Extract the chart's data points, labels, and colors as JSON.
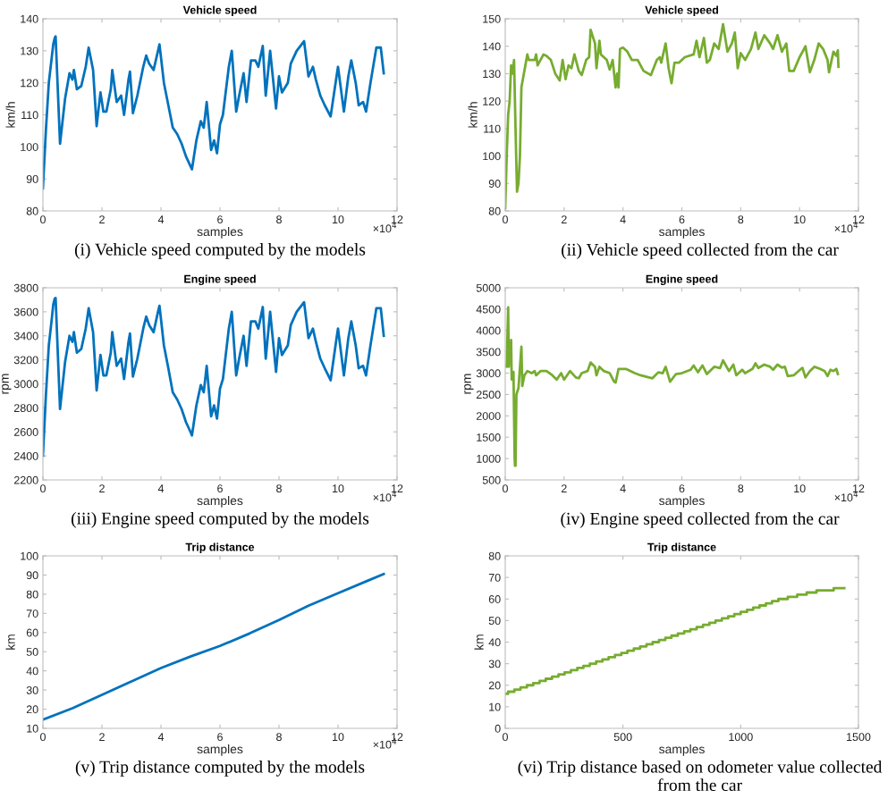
{
  "chart_data": [
    {
      "type": "line",
      "title": "Vehicle speed",
      "xlabel": "samples",
      "ylabel": "km/h",
      "x": [
        0,
        0.1,
        0.2,
        0.3,
        0.35,
        0.4,
        0.43,
        0.58,
        0.75,
        0.9,
        1.0,
        1.05,
        1.15,
        1.3,
        1.45,
        1.55,
        1.7,
        1.82,
        1.95,
        2.05,
        2.15,
        2.3,
        2.35,
        2.5,
        2.65,
        2.75,
        2.9,
        2.95,
        3.05,
        3.2,
        3.4,
        3.5,
        3.6,
        3.75,
        3.9,
        3.95,
        4.1,
        4.25,
        4.4,
        4.55,
        4.7,
        4.85,
        5.0,
        5.05,
        5.2,
        5.35,
        5.45,
        5.55,
        5.7,
        5.8,
        5.9,
        6.0,
        6.1,
        6.3,
        6.4,
        6.55,
        6.65,
        6.8,
        6.9,
        7.05,
        7.2,
        7.3,
        7.45,
        7.55,
        7.7,
        7.9,
        8.0,
        8.1,
        8.3,
        8.4,
        8.6,
        8.85,
        9.0,
        9.15,
        9.25,
        9.4,
        9.55,
        9.75,
        9.95,
        10.0,
        10.2,
        10.35,
        10.45,
        10.6,
        10.7,
        10.85,
        10.95,
        11.1,
        11.3,
        11.45,
        11.55
      ],
      "series": [
        {
          "color": "#0072bd",
          "values": [
            87,
            105,
            120,
            128,
            132,
            134,
            134.5,
            101,
            115,
            123,
            121,
            124,
            118,
            119,
            125,
            131,
            124,
            106.5,
            117,
            111,
            111,
            118,
            124,
            114,
            116,
            110,
            121,
            123.5,
            110.5,
            116,
            125,
            128.5,
            126,
            124,
            130,
            132,
            120,
            113,
            106,
            104,
            101,
            97,
            94,
            93,
            102,
            108,
            106,
            114,
            99,
            102,
            98,
            107,
            110,
            125,
            130,
            111,
            116,
            123,
            114,
            127,
            127,
            125,
            131.5,
            116,
            130,
            112,
            122,
            117,
            120,
            126,
            130,
            133,
            122,
            125,
            121,
            116,
            113,
            109.5,
            122,
            125,
            111,
            122,
            127,
            120,
            113,
            114,
            111,
            120,
            131,
            131,
            123
          ]
        }
      ],
      "xlim": [
        0,
        12
      ],
      "xticks": [
        0,
        2,
        4,
        6,
        8,
        10,
        12
      ],
      "ylim": [
        80,
        140
      ],
      "yticks": [
        80,
        90,
        100,
        110,
        120,
        130,
        140
      ],
      "annotations": [
        "(i) Vehicle speed computed by the models",
        "×10$^{4}$"
      ]
    },
    {
      "type": "line",
      "title": "Vehicle speed",
      "xlabel": "samples",
      "ylabel": "km/h",
      "x": [
        0,
        0.05,
        0.1,
        0.15,
        0.2,
        0.25,
        0.3,
        0.35,
        0.4,
        0.45,
        0.5,
        0.55,
        0.6,
        0.7,
        0.75,
        0.8,
        1.0,
        1.05,
        1.1,
        1.3,
        1.4,
        1.55,
        1.7,
        1.85,
        1.95,
        2.05,
        2.15,
        2.25,
        2.35,
        2.5,
        2.6,
        2.75,
        2.85,
        2.9,
        3.05,
        3.1,
        3.2,
        3.25,
        3.45,
        3.55,
        3.65,
        3.75,
        3.8,
        3.85,
        3.9,
        4.0,
        4.15,
        4.3,
        4.5,
        4.7,
        4.95,
        5.15,
        5.25,
        5.3,
        5.45,
        5.55,
        5.65,
        5.75,
        5.9,
        6.1,
        6.4,
        6.5,
        6.6,
        6.75,
        6.85,
        6.95,
        7.1,
        7.25,
        7.4,
        7.55,
        7.7,
        7.8,
        7.9,
        8.0,
        8.15,
        8.35,
        8.5,
        8.6,
        8.8,
        9.0,
        9.1,
        9.25,
        9.4,
        9.55,
        9.65,
        9.8,
        10.0,
        10.15,
        10.2,
        10.35,
        10.5,
        10.65,
        10.8,
        10.95,
        11.0,
        11.15,
        11.25,
        11.3,
        11.32
      ],
      "series": [
        {
          "color": "#77ac30",
          "values": [
            81,
            100,
            115,
            120,
            133,
            130,
            135,
            110,
            87,
            90,
            100,
            125,
            128,
            134,
            137,
            135,
            135,
            137,
            133,
            137,
            136.5,
            135,
            130,
            127.5,
            135,
            128,
            133,
            132,
            137,
            131,
            129.5,
            135,
            136,
            146,
            141,
            132,
            142,
            137,
            135,
            131.5,
            135,
            125,
            130,
            125,
            139,
            139.5,
            138,
            135,
            135,
            131,
            129.5,
            135,
            136,
            134,
            141,
            132,
            126.5,
            134,
            134,
            136,
            137,
            142,
            136,
            143,
            134,
            135,
            141,
            139,
            148,
            138,
            141,
            145,
            132,
            137.5,
            135,
            139,
            145,
            139,
            144,
            141,
            139,
            144,
            138,
            141,
            131,
            131,
            136,
            139,
            140,
            130.5,
            135,
            141,
            139,
            135,
            130.5,
            138,
            136.5,
            138.5,
            132.5
          ]
        }
      ],
      "xlim": [
        0,
        12
      ],
      "xticks": [
        0,
        2,
        4,
        6,
        8,
        10,
        12
      ],
      "ylim": [
        80,
        150
      ],
      "yticks": [
        80,
        90,
        100,
        110,
        120,
        130,
        140,
        150
      ],
      "annotations": [
        "(ii) Vehicle speed collected from the car",
        "×10$^{4}$"
      ]
    },
    {
      "type": "line",
      "title": "Engine speed",
      "xlabel": "samples",
      "ylabel": "rpm",
      "x": [
        0,
        0.1,
        0.2,
        0.3,
        0.35,
        0.4,
        0.43,
        0.58,
        0.75,
        0.9,
        1.0,
        1.05,
        1.15,
        1.3,
        1.45,
        1.55,
        1.7,
        1.82,
        1.95,
        2.05,
        2.15,
        2.3,
        2.35,
        2.5,
        2.65,
        2.75,
        2.9,
        2.95,
        3.05,
        3.2,
        3.4,
        3.5,
        3.6,
        3.75,
        3.9,
        3.95,
        4.1,
        4.25,
        4.4,
        4.55,
        4.7,
        4.85,
        5.0,
        5.05,
        5.2,
        5.35,
        5.45,
        5.55,
        5.7,
        5.8,
        5.9,
        6.0,
        6.1,
        6.3,
        6.4,
        6.55,
        6.65,
        6.8,
        6.9,
        7.05,
        7.2,
        7.3,
        7.45,
        7.55,
        7.7,
        7.9,
        8.0,
        8.1,
        8.3,
        8.4,
        8.6,
        8.85,
        9.0,
        9.15,
        9.25,
        9.4,
        9.55,
        9.75,
        9.95,
        10.0,
        10.2,
        10.35,
        10.45,
        10.6,
        10.7,
        10.85,
        10.95,
        11.1,
        11.3,
        11.45,
        11.55
      ],
      "series": [
        {
          "color": "#0072bd",
          "values": [
            2400,
            2900,
            3320,
            3540,
            3660,
            3710,
            3715,
            2790,
            3180,
            3400,
            3350,
            3430,
            3260,
            3290,
            3460,
            3630,
            3430,
            2945,
            3240,
            3070,
            3070,
            3260,
            3430,
            3150,
            3210,
            3040,
            3350,
            3420,
            3060,
            3210,
            3460,
            3560,
            3490,
            3430,
            3600,
            3650,
            3320,
            3130,
            2930,
            2870,
            2790,
            2680,
            2600,
            2570,
            2820,
            2990,
            2930,
            3150,
            2730,
            2820,
            2710,
            2960,
            3040,
            3460,
            3600,
            3070,
            3210,
            3400,
            3150,
            3520,
            3520,
            3460,
            3640,
            3210,
            3600,
            3100,
            3380,
            3240,
            3320,
            3490,
            3600,
            3680,
            3380,
            3460,
            3350,
            3210,
            3130,
            3030,
            3380,
            3460,
            3070,
            3380,
            3520,
            3320,
            3130,
            3150,
            3070,
            3320,
            3630,
            3630,
            3400
          ]
        }
      ],
      "xlim": [
        0,
        12
      ],
      "xticks": [
        0,
        2,
        4,
        6,
        8,
        10,
        12
      ],
      "ylim": [
        2200,
        3800
      ],
      "yticks": [
        2200,
        2400,
        2600,
        2800,
        3000,
        3200,
        3400,
        3600,
        3800
      ],
      "annotations": [
        "(iii) Engine speed computed by the models",
        "×10$^{4}$"
      ]
    },
    {
      "type": "line",
      "title": "Engine speed",
      "xlabel": "samples",
      "ylabel": "rpm",
      "x": [
        0,
        0.05,
        0.1,
        0.12,
        0.2,
        0.22,
        0.28,
        0.32,
        0.33,
        0.35,
        0.38,
        0.45,
        0.55,
        0.58,
        0.65,
        0.75,
        0.9,
        1.0,
        1.05,
        1.2,
        1.4,
        1.6,
        1.75,
        1.9,
        2.0,
        2.2,
        2.4,
        2.5,
        2.6,
        2.8,
        2.9,
        3.05,
        3.1,
        3.2,
        3.35,
        3.55,
        3.7,
        3.75,
        3.85,
        4.1,
        4.4,
        4.6,
        5.0,
        5.2,
        5.35,
        5.45,
        5.6,
        5.8,
        6.0,
        6.3,
        6.4,
        6.55,
        6.7,
        6.85,
        7.1,
        7.3,
        7.4,
        7.6,
        7.75,
        7.85,
        8.05,
        8.15,
        8.4,
        8.5,
        8.6,
        8.8,
        9.0,
        9.1,
        9.25,
        9.4,
        9.5,
        9.6,
        9.8,
        10.05,
        10.1,
        10.2,
        10.35,
        10.5,
        10.7,
        10.85,
        10.95,
        11.05,
        11.15,
        11.25,
        11.3
      ],
      "series": [
        {
          "color": "#77ac30",
          "values": [
            3180,
            3150,
            4540,
            3150,
            3780,
            2850,
            3030,
            1000,
            830,
            830,
            2500,
            2650,
            3620,
            2700,
            2950,
            3050,
            3000,
            3050,
            2950,
            3050,
            3050,
            2950,
            2850,
            3000,
            2850,
            3050,
            2900,
            2880,
            3000,
            3050,
            3250,
            3150,
            2950,
            3150,
            3050,
            3000,
            2800,
            2780,
            3100,
            3100,
            3000,
            2950,
            2880,
            3020,
            3000,
            3150,
            2800,
            2980,
            3000,
            3080,
            3180,
            3020,
            3180,
            2980,
            3150,
            3120,
            3300,
            3050,
            3200,
            2950,
            3080,
            3000,
            3100,
            3230,
            3120,
            3200,
            3150,
            3080,
            3200,
            3130,
            3150,
            2930,
            2950,
            3100,
            3120,
            2900,
            3050,
            3150,
            3100,
            3050,
            2930,
            3080,
            3050,
            3100,
            2980
          ]
        }
      ],
      "xlim": [
        0,
        12
      ],
      "xticks": [
        0,
        2,
        4,
        6,
        8,
        10,
        12
      ],
      "ylim": [
        500,
        5000
      ],
      "yticks": [
        500,
        1000,
        1500,
        2000,
        2500,
        3000,
        3500,
        4000,
        4500,
        5000
      ],
      "annotations": [
        "(iv) Engine speed collected from the car",
        "×10$^{4}$"
      ]
    },
    {
      "type": "line",
      "title": "Trip distance",
      "xlabel": "samples",
      "ylabel": "km",
      "x": [
        0,
        1,
        2,
        3,
        4,
        5,
        6,
        7,
        8,
        9,
        10,
        11,
        11.55
      ],
      "series": [
        {
          "color": "#0072bd",
          "values": [
            14.5,
            20.5,
            27.5,
            34.5,
            41.5,
            47.5,
            53,
            59.5,
            66.5,
            74,
            80.5,
            87,
            90.5
          ]
        }
      ],
      "xlim": [
        0,
        12
      ],
      "xticks": [
        0,
        2,
        4,
        6,
        8,
        10,
        12
      ],
      "ylim": [
        10,
        100
      ],
      "yticks": [
        10,
        20,
        30,
        40,
        50,
        60,
        70,
        80,
        90,
        100
      ],
      "annotations": [
        "(v) Trip distance computed by the models",
        "×10$^{4}$"
      ]
    },
    {
      "type": "step",
      "title": "Trip distance",
      "xlabel": "samples",
      "ylabel": "km",
      "x": [
        0,
        12,
        39,
        65,
        92,
        119,
        146,
        172,
        199,
        226,
        252,
        279,
        306,
        332,
        359,
        386,
        413,
        439,
        466,
        493,
        519,
        546,
        573,
        600,
        626,
        653,
        680,
        706,
        733,
        760,
        786,
        813,
        840,
        867,
        893,
        920,
        947,
        973,
        1000,
        1027,
        1053,
        1080,
        1107,
        1133,
        1160,
        1200,
        1240,
        1280,
        1322,
        1395,
        1440
      ],
      "series": [
        {
          "color": "#77ac30",
          "values": [
            16,
            17,
            18,
            19,
            20,
            21,
            22,
            23,
            24,
            25,
            26,
            27,
            28,
            29,
            30,
            31,
            32,
            33,
            34,
            35,
            36,
            37,
            38,
            39,
            40,
            41,
            42,
            43,
            44,
            45,
            46,
            47,
            48,
            49,
            50,
            51,
            52,
            53,
            54,
            55,
            56,
            57,
            58,
            59,
            60,
            61,
            62,
            63,
            64,
            65,
            65
          ]
        }
      ],
      "xlim": [
        0,
        1500
      ],
      "xticks": [
        0,
        500,
        1000,
        1500
      ],
      "ylim": [
        0,
        80
      ],
      "yticks": [
        0,
        10,
        20,
        30,
        40,
        50,
        60,
        70,
        80
      ],
      "annotations": [
        "(vi) Trip distance based on odometer value collected from the car"
      ]
    }
  ]
}
